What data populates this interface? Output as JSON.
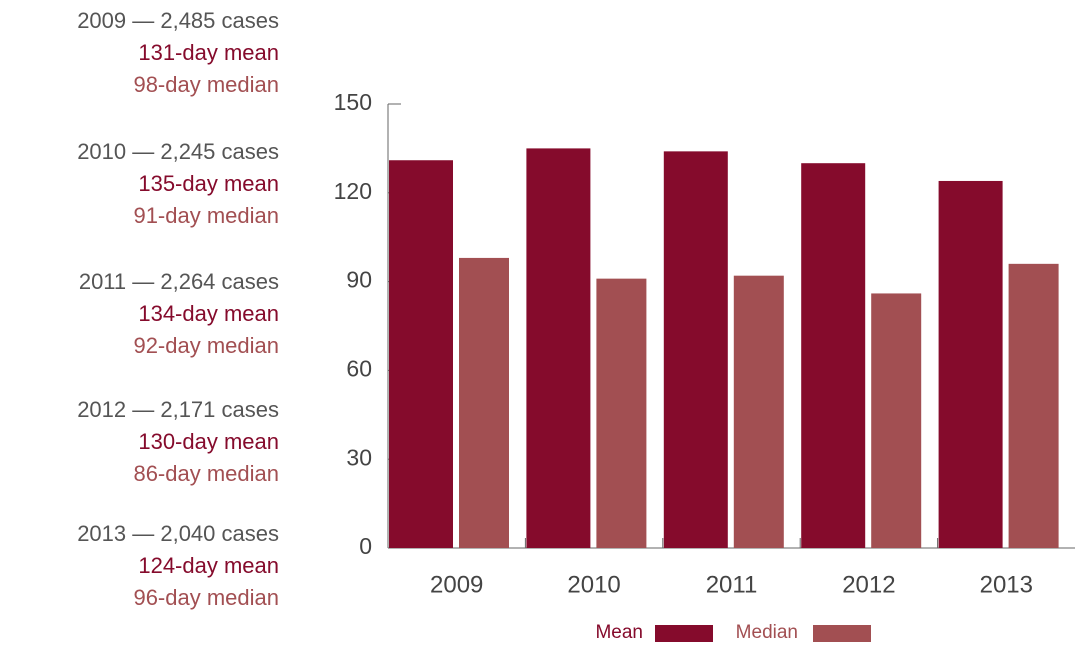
{
  "chart_data": {
    "type": "bar",
    "categories": [
      "2009",
      "2010",
      "2011",
      "2012",
      "2013"
    ],
    "series": [
      {
        "name": "Mean",
        "color": "#850b2c",
        "values": [
          131,
          135,
          134,
          130,
          124
        ]
      },
      {
        "name": "Median",
        "color": "#a24f52",
        "values": [
          98,
          91,
          92,
          86,
          96
        ]
      }
    ],
    "ylim": [
      0,
      150
    ],
    "yticks": [
      0,
      30,
      60,
      90,
      120,
      150
    ],
    "annotations": [
      [
        "2009 — 2,485 cases",
        "131-day mean",
        "98-day median"
      ],
      [
        "2010 — 2,245 cases",
        "135-day mean",
        "91-day median"
      ],
      [
        "2011 — 2,264 cases",
        "134-day mean",
        "92-day median"
      ],
      [
        "2012 — 2,171 cases",
        "130-day mean",
        "86-day median"
      ],
      [
        "2013 — 2,040 cases",
        "124-day mean",
        "96-day median"
      ]
    ]
  }
}
